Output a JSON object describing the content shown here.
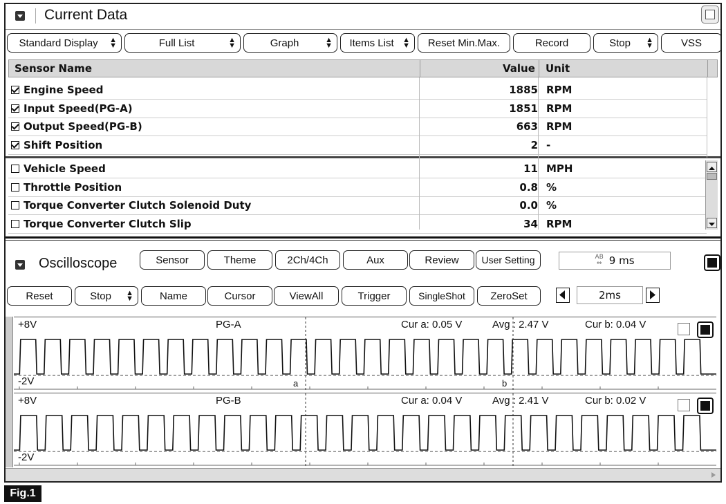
{
  "panel": {
    "title": "Current Data"
  },
  "toolbar": {
    "display_mode": "Standard Display",
    "list_mode": "Full List",
    "graph": "Graph",
    "items_list": "Items List",
    "reset_minmax": "Reset Min.Max.",
    "record": "Record",
    "stop": "Stop",
    "vss": "VSS"
  },
  "table": {
    "headers": {
      "name": "Sensor Name",
      "value": "Value",
      "unit": "Unit"
    },
    "selected": [
      {
        "name": "Engine Speed",
        "value": "1885",
        "unit": "RPM",
        "checked": true
      },
      {
        "name": "Input Speed(PG-A)",
        "value": "1851",
        "unit": "RPM",
        "checked": true
      },
      {
        "name": "Output Speed(PG-B)",
        "value": "663",
        "unit": "RPM",
        "checked": true
      },
      {
        "name": "Shift Position",
        "value": "2",
        "unit": "-",
        "checked": true
      }
    ],
    "others": [
      {
        "name": "Vehicle Speed",
        "value": "11",
        "unit": "MPH",
        "checked": false
      },
      {
        "name": "Throttle Position",
        "value": "0.8",
        "unit": "%",
        "checked": false
      },
      {
        "name": "Torque Converter Clutch Solenoid Duty",
        "value": "0.0",
        "unit": "%",
        "checked": false
      },
      {
        "name": "Torque Converter Clutch Slip",
        "value": "34",
        "unit": "RPM",
        "checked": false
      }
    ]
  },
  "oscilloscope": {
    "title": "Oscilloscope",
    "buttons_row1": {
      "sensor": "Sensor",
      "theme": "Theme",
      "channels": "2Ch/4Ch",
      "aux": "Aux",
      "review": "Review",
      "user_setting": "User Setting"
    },
    "readout": "9 ms",
    "readout_icon": "ab-icon",
    "buttons_row2": {
      "reset": "Reset",
      "stop": "Stop",
      "name": "Name",
      "cursor": "Cursor",
      "viewall": "ViewAll",
      "trigger": "Trigger",
      "singleshot": "SingleShot",
      "zeroset": "ZeroSet"
    },
    "timebase": "2ms",
    "channels": [
      {
        "label": "PG-A",
        "top": "+8V",
        "bottom": "-2V",
        "cur_a": "Cur a: 0.05 V",
        "avg": "Avg  : 2.47 V",
        "cur_b": "Cur b: 0.04 V",
        "cursor_a_label": "a",
        "cursor_b_label": "b",
        "cycles": 28
      },
      {
        "label": "PG-B",
        "top": "+8V",
        "bottom": "-2V",
        "cur_a": "Cur a: 0.04 V",
        "avg": "Avg  : 2.41 V",
        "cur_b": "Cur b: 0.02 V",
        "cursor_a_label": "",
        "cursor_b_label": "",
        "cycles": 27
      }
    ]
  },
  "figure_label": "Fig.1"
}
